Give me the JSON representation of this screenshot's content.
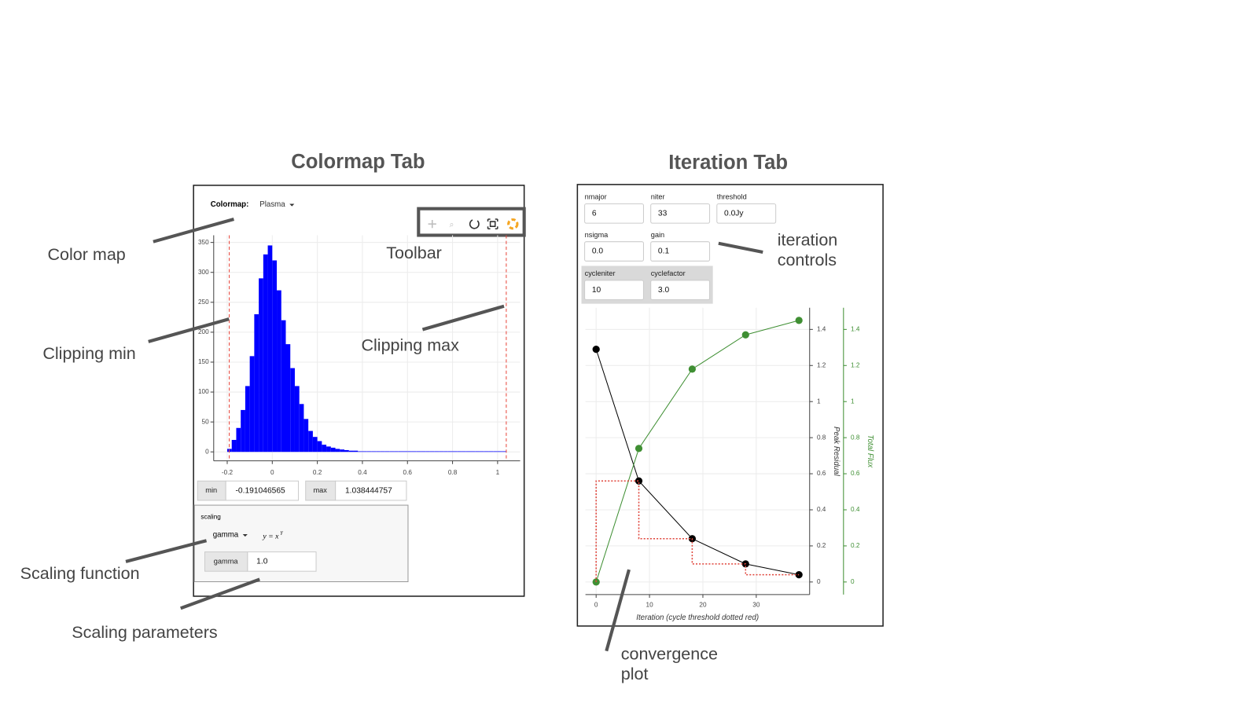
{
  "headings": {
    "colormap_tab": "Colormap Tab",
    "iteration_tab": "Iteration Tab"
  },
  "annotations": {
    "color_map": "Color map",
    "toolbar": "Toolbar",
    "clipping_min": "Clipping min",
    "clipping_max": "Clipping max",
    "scaling_function": "Scaling function",
    "scaling_parameters": "Scaling parameters",
    "iteration_controls": [
      "iteration",
      "controls"
    ],
    "convergence_plot": [
      "convergence",
      "plot"
    ]
  },
  "colormap_controls": {
    "label": "Colormap:",
    "value": "Plasma",
    "min_label": "min",
    "max_label": "max",
    "scaling_label": "scaling",
    "scaling_function": "gamma",
    "formula_base": "y = x",
    "formula_exp": "γ",
    "gamma_label": "gamma",
    "gamma_value": "1.0"
  },
  "iteration_controls": [
    {
      "label": "nmajor",
      "value": "6"
    },
    {
      "label": "niter",
      "value": "33"
    },
    {
      "label": "threshold",
      "value": "0.0Jy"
    },
    {
      "label": "nsigma",
      "value": "0.0"
    },
    {
      "label": "gain",
      "value": "0.1"
    },
    {
      "label": "cycleniter",
      "value": "10"
    },
    {
      "label": "cyclefactor",
      "value": "3.0"
    }
  ],
  "chart_data": [
    {
      "type": "histogram",
      "color": "#0000ff",
      "bins": [
        -0.2,
        -0.18,
        -0.16,
        -0.14,
        -0.12,
        -0.1,
        -0.08,
        -0.06,
        -0.04,
        -0.02,
        0,
        0.02,
        0.04,
        0.06,
        0.08,
        0.1,
        0.12,
        0.14,
        0.16,
        0.18,
        0.2,
        0.22,
        0.24,
        0.26,
        0.28,
        0.3,
        0.32,
        0.34,
        0.36,
        0.38,
        0.4,
        0.42,
        0.44,
        0.46,
        0.48,
        0.5,
        0.52,
        0.54,
        0.56,
        0.58,
        0.6,
        0.62,
        0.64,
        0.66,
        0.68,
        0.7,
        0.72,
        0.74,
        0.76,
        0.78,
        0.8,
        0.82,
        0.84,
        0.86,
        0.88,
        0.9,
        0.92,
        0.94,
        0.96,
        0.98,
        1,
        1.02,
        1.04
      ],
      "values": [
        5,
        20,
        40,
        70,
        110,
        160,
        230,
        290,
        330,
        345,
        320,
        270,
        220,
        180,
        140,
        110,
        80,
        55,
        35,
        25,
        18,
        12,
        9,
        7,
        5,
        4,
        3,
        2,
        2,
        1,
        1,
        1,
        1,
        1,
        1,
        1,
        1,
        1,
        1,
        1,
        1,
        1,
        1,
        1,
        1,
        1,
        1,
        1,
        1,
        1,
        1,
        1,
        1,
        1,
        1,
        1,
        1,
        1,
        1,
        1,
        1,
        1
      ],
      "xlim": [
        -0.26,
        1.1
      ],
      "ylim": [
        -15,
        362
      ],
      "xticks": [
        -0.2,
        0,
        0.2,
        0.4,
        0.6,
        0.8,
        1
      ],
      "yticks": [
        0,
        50,
        100,
        150,
        200,
        250,
        300,
        350
      ],
      "grid": true,
      "clip_lines": [
        -0.191046565,
        1.038444757
      ],
      "clip_color": "#e8473c"
    },
    {
      "type": "line",
      "xlabel": "Iteration (cycle threshold dotted red)",
      "ylabel": "Peak Residual",
      "y2label": "Total Flux",
      "x": [
        0,
        8,
        18,
        28,
        38
      ],
      "series": [
        {
          "color": "#000000",
          "values": [
            1.29,
            0.56,
            0.24,
            0.1,
            0.04
          ],
          "markers": true
        },
        {
          "color": "#3f8f33",
          "axis": "y2",
          "values": [
            0,
            0.74,
            1.18,
            1.37,
            1.45
          ],
          "markers": true
        },
        {
          "color": "#e0463c",
          "dotted": true,
          "x": [
            0,
            0,
            8,
            8,
            18,
            18,
            28,
            28,
            38
          ],
          "values": [
            0,
            0.56,
            0.56,
            0.24,
            0.24,
            0.1,
            0.1,
            0.04,
            0.04
          ]
        }
      ],
      "xlim": [
        -2,
        40
      ],
      "ylim": [
        -0.07,
        1.52
      ],
      "y2lim": [
        -0.07,
        1.52
      ],
      "xticks": [
        0,
        10,
        20,
        30
      ],
      "yticks": [
        0,
        0.2,
        0.4,
        0.6,
        0.8,
        1,
        1.2,
        1.4
      ],
      "y2ticks": [
        0,
        0.2,
        0.4,
        0.6,
        0.8,
        1,
        1.2,
        1.4
      ],
      "grid": true
    }
  ]
}
